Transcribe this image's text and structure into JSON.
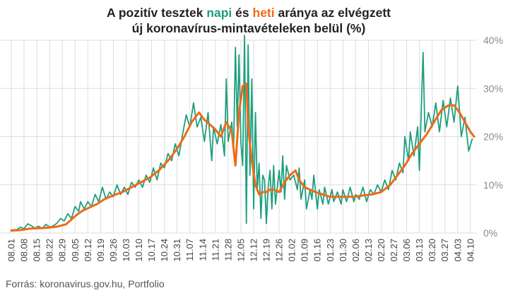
{
  "title": {
    "line1_a": "A pozitív tesztek ",
    "line1_napi": "napi",
    "line1_b": " és ",
    "line1_heti": "heti",
    "line1_c": " aránya az elvégzett",
    "line2": "új koronavírus-mintavételeken belül (%)"
  },
  "source": "Forrás: koronavirus.gov.hu, Portfolio",
  "colors": {
    "napi": "#1e9e7e",
    "heti": "#f06a14",
    "grid": "#dddddd"
  },
  "chart_data": {
    "type": "line",
    "x_start": "2020-08-01",
    "x_end": "2021-04-12",
    "ylim": [
      0,
      40
    ],
    "yticks": [
      "0%",
      "10%",
      "20%",
      "30%",
      "40%"
    ],
    "xticks": [
      "08.01",
      "08.08",
      "08.15",
      "08.22",
      "08.29",
      "09.05",
      "09.12",
      "09.19",
      "09.26",
      "10.03",
      "10.10",
      "10.17",
      "10.24",
      "10.31",
      "11.07",
      "11.14",
      "11.21",
      "11.28",
      "12.05",
      "12.12",
      "12.19",
      "12.26",
      "01.02",
      "01.09",
      "01.16",
      "01.23",
      "01.30",
      "02.06",
      "02.13",
      "02.20",
      "02.27",
      "03.06",
      "03.13",
      "03.20",
      "03.27",
      "04.03",
      "04.10"
    ],
    "grid": true,
    "legend": "none",
    "series": [
      {
        "name": "napi",
        "color": "#1e9e7e",
        "points": [
          [
            "2020-08-01",
            0.6
          ],
          [
            "2020-08-04",
            0.7
          ],
          [
            "2020-08-06",
            1.2
          ],
          [
            "2020-08-08",
            0.9
          ],
          [
            "2020-08-10",
            1.9
          ],
          [
            "2020-08-12",
            1.5
          ],
          [
            "2020-08-14",
            1.0
          ],
          [
            "2020-08-16",
            1.4
          ],
          [
            "2020-08-18",
            0.9
          ],
          [
            "2020-08-20",
            1.8
          ],
          [
            "2020-08-22",
            1.2
          ],
          [
            "2020-08-24",
            1.5
          ],
          [
            "2020-08-26",
            2.0
          ],
          [
            "2020-08-28",
            3.0
          ],
          [
            "2020-08-30",
            2.5
          ],
          [
            "2020-09-01",
            4.0
          ],
          [
            "2020-09-03",
            3.0
          ],
          [
            "2020-09-05",
            5.5
          ],
          [
            "2020-09-07",
            4.5
          ],
          [
            "2020-09-08",
            6.5
          ],
          [
            "2020-09-10",
            5.0
          ],
          [
            "2020-09-12",
            6.5
          ],
          [
            "2020-09-14",
            5.5
          ],
          [
            "2020-09-16",
            8.0
          ],
          [
            "2020-09-18",
            6.5
          ],
          [
            "2020-09-20",
            9.5
          ],
          [
            "2020-09-22",
            7.0
          ],
          [
            "2020-09-24",
            8.5
          ],
          [
            "2020-09-26",
            7.5
          ],
          [
            "2020-09-28",
            10.0
          ],
          [
            "2020-09-30",
            8.0
          ],
          [
            "2020-10-02",
            9.5
          ],
          [
            "2020-10-04",
            8.0
          ],
          [
            "2020-10-06",
            10.5
          ],
          [
            "2020-10-08",
            9.5
          ],
          [
            "2020-10-10",
            11.0
          ],
          [
            "2020-10-12",
            9.5
          ],
          [
            "2020-10-14",
            12.0
          ],
          [
            "2020-10-16",
            10.5
          ],
          [
            "2020-10-18",
            13.5
          ],
          [
            "2020-10-20",
            11.0
          ],
          [
            "2020-10-22",
            14.5
          ],
          [
            "2020-10-24",
            13.5
          ],
          [
            "2020-10-26",
            16.5
          ],
          [
            "2020-10-28",
            15.0
          ],
          [
            "2020-10-30",
            18.5
          ],
          [
            "2020-11-01",
            16.0
          ],
          [
            "2020-11-03",
            20.5
          ],
          [
            "2020-11-05",
            24.5
          ],
          [
            "2020-11-07",
            22.0
          ],
          [
            "2020-11-09",
            27.0
          ],
          [
            "2020-11-11",
            22.0
          ],
          [
            "2020-11-13",
            24.0
          ],
          [
            "2020-11-15",
            19.0
          ],
          [
            "2020-11-17",
            25.0
          ],
          [
            "2020-11-19",
            15.0
          ],
          [
            "2020-11-20",
            22.0
          ],
          [
            "2020-11-22",
            18.5
          ],
          [
            "2020-11-24",
            22.5
          ],
          [
            "2020-11-26",
            16.0
          ],
          [
            "2020-11-27",
            32.0
          ],
          [
            "2020-11-28",
            19.0
          ],
          [
            "2020-11-30",
            23.0
          ],
          [
            "2020-12-01",
            17.0
          ],
          [
            "2020-12-02",
            38.5
          ],
          [
            "2020-12-03",
            22.0
          ],
          [
            "2020-12-04",
            37.0
          ],
          [
            "2020-12-05",
            19.0
          ],
          [
            "2020-12-06",
            14.0
          ],
          [
            "2020-12-07",
            41.0
          ],
          [
            "2020-12-08",
            2.0
          ],
          [
            "2020-12-09",
            39.0
          ],
          [
            "2020-12-10",
            12.0
          ],
          [
            "2020-12-11",
            32.0
          ],
          [
            "2020-12-12",
            5.0
          ],
          [
            "2020-12-13",
            25.0
          ],
          [
            "2020-12-14",
            9.0
          ],
          [
            "2020-12-15",
            14.5
          ],
          [
            "2020-12-16",
            3.0
          ],
          [
            "2020-12-17",
            12.0
          ],
          [
            "2020-12-18",
            11.0
          ],
          [
            "2020-12-19",
            2.0
          ],
          [
            "2020-12-20",
            9.5
          ],
          [
            "2020-12-21",
            13.0
          ],
          [
            "2020-12-22",
            5.0
          ],
          [
            "2020-12-23",
            14.0
          ],
          [
            "2020-12-24",
            6.0
          ],
          [
            "2020-12-26",
            13.0
          ],
          [
            "2020-12-27",
            8.5
          ],
          [
            "2020-12-28",
            16.0
          ],
          [
            "2020-12-29",
            7.0
          ],
          [
            "2020-12-30",
            14.0
          ],
          [
            "2021-01-01",
            11.0
          ],
          [
            "2021-01-03",
            12.0
          ],
          [
            "2021-01-05",
            9.0
          ],
          [
            "2021-01-06",
            13.5
          ],
          [
            "2021-01-07",
            7.0
          ],
          [
            "2021-01-09",
            11.0
          ],
          [
            "2021-01-10",
            5.0
          ],
          [
            "2021-01-12",
            9.0
          ],
          [
            "2021-01-13",
            7.0
          ],
          [
            "2021-01-14",
            12.0
          ],
          [
            "2021-01-16",
            5.0
          ],
          [
            "2021-01-17",
            9.0
          ],
          [
            "2021-01-19",
            6.0
          ],
          [
            "2021-01-20",
            9.5
          ],
          [
            "2021-01-22",
            6.0
          ],
          [
            "2021-01-24",
            9.0
          ],
          [
            "2021-01-25",
            6.5
          ],
          [
            "2021-01-27",
            8.5
          ],
          [
            "2021-01-29",
            6.0
          ],
          [
            "2021-01-30",
            9.0
          ],
          [
            "2021-02-01",
            6.5
          ],
          [
            "2021-02-03",
            9.5
          ],
          [
            "2021-02-05",
            6.5
          ],
          [
            "2021-02-06",
            8.0
          ],
          [
            "2021-02-08",
            7.0
          ],
          [
            "2021-02-10",
            9.5
          ],
          [
            "2021-02-12",
            6.5
          ],
          [
            "2021-02-14",
            9.0
          ],
          [
            "2021-02-16",
            8.0
          ],
          [
            "2021-02-18",
            10.0
          ],
          [
            "2021-02-20",
            8.5
          ],
          [
            "2021-02-22",
            11.0
          ],
          [
            "2021-02-24",
            9.0
          ],
          [
            "2021-02-26",
            13.0
          ],
          [
            "2021-02-28",
            11.0
          ],
          [
            "2021-03-02",
            14.5
          ],
          [
            "2021-03-04",
            12.5
          ],
          [
            "2021-03-05",
            20.0
          ],
          [
            "2021-03-07",
            15.0
          ],
          [
            "2021-03-08",
            21.0
          ],
          [
            "2021-03-10",
            16.0
          ],
          [
            "2021-03-12",
            22.0
          ],
          [
            "2021-03-13",
            13.0
          ],
          [
            "2021-03-15",
            37.5
          ],
          [
            "2021-03-16",
            21.0
          ],
          [
            "2021-03-18",
            25.0
          ],
          [
            "2021-03-20",
            22.0
          ],
          [
            "2021-03-22",
            27.0
          ],
          [
            "2021-03-24",
            21.0
          ],
          [
            "2021-03-26",
            27.5
          ],
          [
            "2021-03-28",
            22.0
          ],
          [
            "2021-03-30",
            28.0
          ],
          [
            "2021-04-01",
            23.0
          ],
          [
            "2021-04-03",
            30.5
          ],
          [
            "2021-04-05",
            20.0
          ],
          [
            "2021-04-07",
            24.0
          ],
          [
            "2021-04-09",
            17.0
          ],
          [
            "2021-04-11",
            19.5
          ]
        ]
      },
      {
        "name": "heti",
        "color": "#f06a14",
        "points": [
          [
            "2020-08-01",
            0.5
          ],
          [
            "2020-08-06",
            0.6
          ],
          [
            "2020-08-11",
            0.9
          ],
          [
            "2020-08-16",
            1.0
          ],
          [
            "2020-08-21",
            1.1
          ],
          [
            "2020-08-26",
            1.3
          ],
          [
            "2020-08-31",
            1.8
          ],
          [
            "2020-09-03",
            2.8
          ],
          [
            "2020-09-06",
            3.8
          ],
          [
            "2020-09-09",
            4.6
          ],
          [
            "2020-09-13",
            5.3
          ],
          [
            "2020-09-17",
            6.0
          ],
          [
            "2020-09-21",
            7.0
          ],
          [
            "2020-09-26",
            7.8
          ],
          [
            "2020-10-01",
            8.5
          ],
          [
            "2020-10-06",
            9.5
          ],
          [
            "2020-10-11",
            10.5
          ],
          [
            "2020-10-16",
            11.5
          ],
          [
            "2020-10-21",
            13.0
          ],
          [
            "2020-10-26",
            15.0
          ],
          [
            "2020-10-31",
            17.5
          ],
          [
            "2020-11-04",
            20.0
          ],
          [
            "2020-11-08",
            23.0
          ],
          [
            "2020-11-12",
            25.0
          ],
          [
            "2020-11-15",
            23.5
          ],
          [
            "2020-11-18",
            22.5
          ],
          [
            "2020-11-21",
            21.5
          ],
          [
            "2020-11-24",
            20.0
          ],
          [
            "2020-11-27",
            23.0
          ],
          [
            "2020-11-30",
            21.0
          ],
          [
            "2020-12-02",
            14.0
          ],
          [
            "2020-12-04",
            25.0
          ],
          [
            "2020-12-06",
            30.5
          ],
          [
            "2020-12-08",
            31.0
          ],
          [
            "2020-12-09",
            22.0
          ],
          [
            "2020-12-11",
            15.0
          ],
          [
            "2020-12-13",
            10.0
          ],
          [
            "2020-12-15",
            8.0
          ],
          [
            "2020-12-17",
            8.5
          ],
          [
            "2020-12-19",
            8.5
          ],
          [
            "2020-12-21",
            9.0
          ],
          [
            "2020-12-23",
            9.0
          ],
          [
            "2020-12-26",
            8.5
          ],
          [
            "2020-12-29",
            10.5
          ],
          [
            "2021-01-01",
            12.0
          ],
          [
            "2021-01-04",
            13.0
          ],
          [
            "2021-01-06",
            11.0
          ],
          [
            "2021-01-09",
            9.5
          ],
          [
            "2021-01-12",
            9.0
          ],
          [
            "2021-01-15",
            8.5
          ],
          [
            "2021-01-19",
            8.0
          ],
          [
            "2021-01-23",
            7.5
          ],
          [
            "2021-01-27",
            7.5
          ],
          [
            "2021-01-31",
            7.5
          ],
          [
            "2021-02-05",
            7.5
          ],
          [
            "2021-02-10",
            7.8
          ],
          [
            "2021-02-15",
            8.0
          ],
          [
            "2021-02-20",
            8.5
          ],
          [
            "2021-02-25",
            10.0
          ],
          [
            "2021-03-01",
            12.0
          ],
          [
            "2021-03-05",
            14.0
          ],
          [
            "2021-03-09",
            16.5
          ],
          [
            "2021-03-13",
            18.5
          ],
          [
            "2021-03-17",
            20.5
          ],
          [
            "2021-03-21",
            23.0
          ],
          [
            "2021-03-25",
            25.5
          ],
          [
            "2021-03-29",
            26.5
          ],
          [
            "2021-04-01",
            26.5
          ],
          [
            "2021-04-04",
            25.0
          ],
          [
            "2021-04-07",
            23.0
          ],
          [
            "2021-04-10",
            21.0
          ],
          [
            "2021-04-12",
            20.0
          ]
        ]
      }
    ]
  }
}
